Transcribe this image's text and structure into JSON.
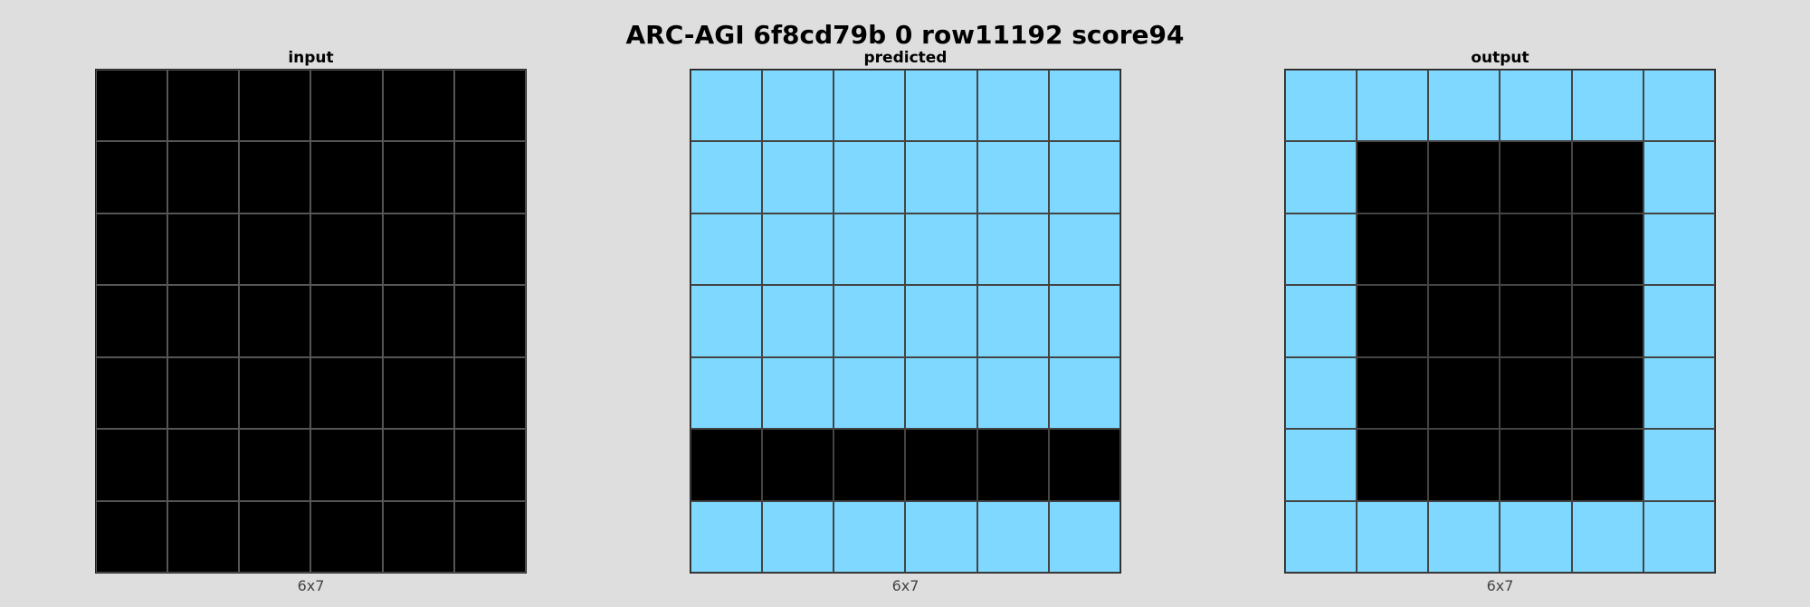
{
  "title": "ARC-AGI 6f8cd79b 0 row11192 score94",
  "colors": {
    "0": "#000000",
    "8": "#7fd8ff"
  },
  "panels": [
    {
      "label": "input",
      "dims": "6x7",
      "grid": [
        [
          0,
          0,
          0,
          0,
          0,
          0
        ],
        [
          0,
          0,
          0,
          0,
          0,
          0
        ],
        [
          0,
          0,
          0,
          0,
          0,
          0
        ],
        [
          0,
          0,
          0,
          0,
          0,
          0
        ],
        [
          0,
          0,
          0,
          0,
          0,
          0
        ],
        [
          0,
          0,
          0,
          0,
          0,
          0
        ],
        [
          0,
          0,
          0,
          0,
          0,
          0
        ]
      ]
    },
    {
      "label": "predicted",
      "dims": "6x7",
      "grid": [
        [
          8,
          8,
          8,
          8,
          8,
          8
        ],
        [
          8,
          8,
          8,
          8,
          8,
          8
        ],
        [
          8,
          8,
          8,
          8,
          8,
          8
        ],
        [
          8,
          8,
          8,
          8,
          8,
          8
        ],
        [
          8,
          8,
          8,
          8,
          8,
          8
        ],
        [
          0,
          0,
          0,
          0,
          0,
          0
        ],
        [
          8,
          8,
          8,
          8,
          8,
          8
        ]
      ]
    },
    {
      "label": "output",
      "dims": "6x7",
      "grid": [
        [
          8,
          8,
          8,
          8,
          8,
          8
        ],
        [
          8,
          0,
          0,
          0,
          0,
          8
        ],
        [
          8,
          0,
          0,
          0,
          0,
          8
        ],
        [
          8,
          0,
          0,
          0,
          0,
          8
        ],
        [
          8,
          0,
          0,
          0,
          0,
          8
        ],
        [
          8,
          0,
          0,
          0,
          0,
          8
        ],
        [
          8,
          8,
          8,
          8,
          8,
          8
        ]
      ]
    }
  ]
}
